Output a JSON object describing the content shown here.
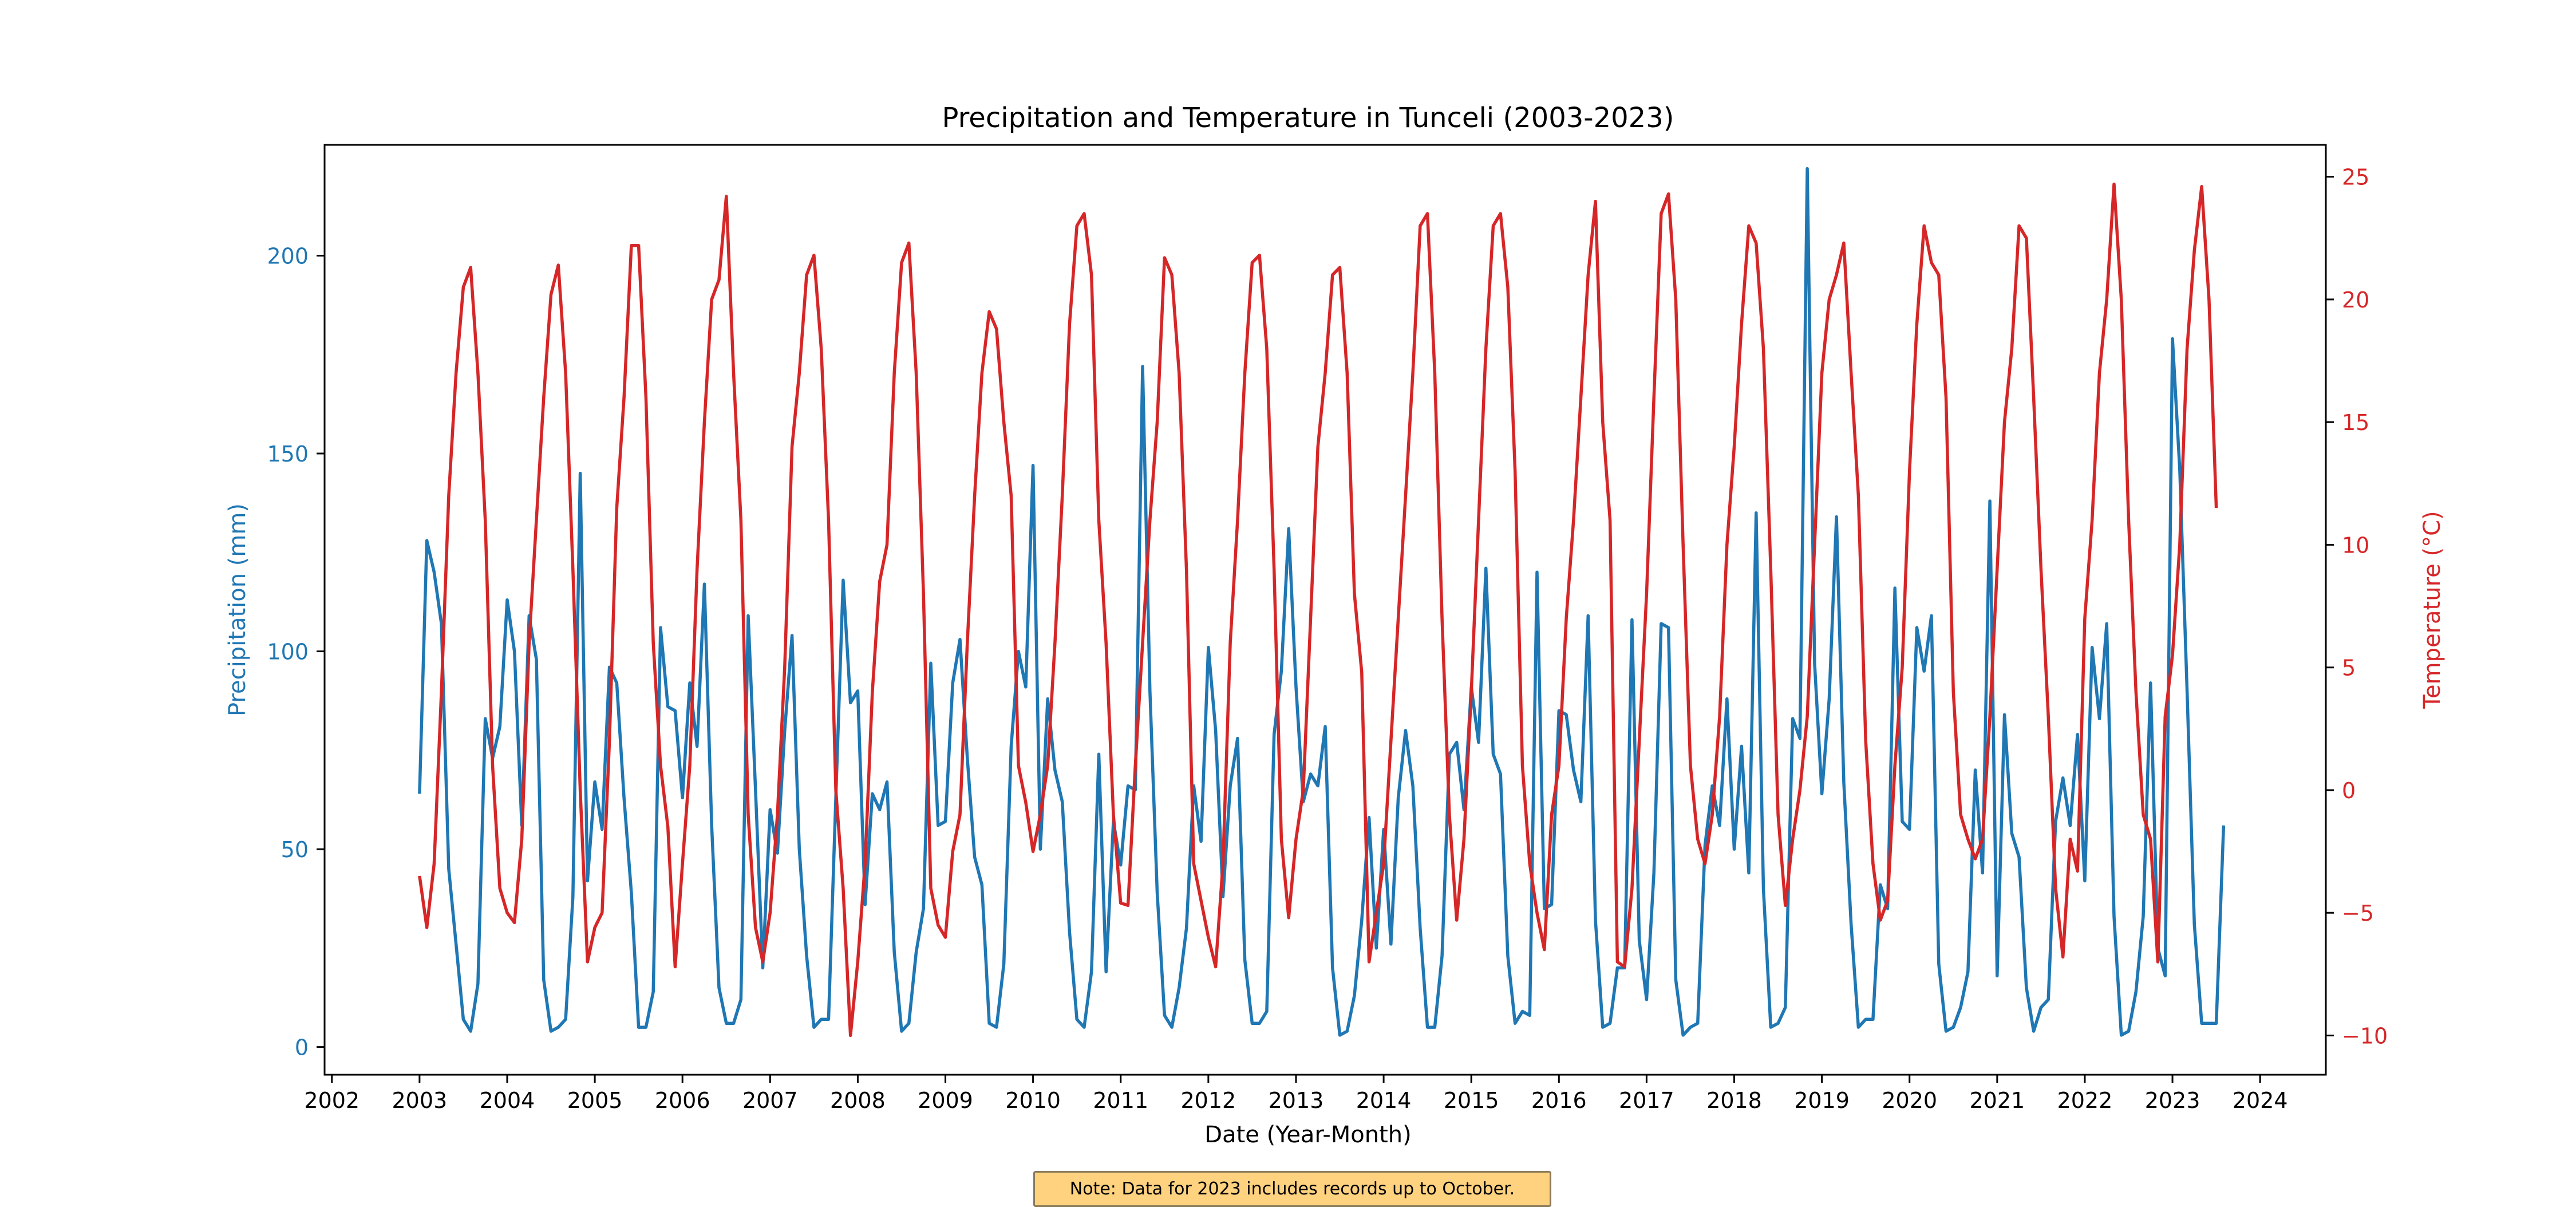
{
  "chart_data": {
    "type": "line",
    "title": "Precipitation and Temperature in Tunceli (2003-2023)",
    "xlabel": "Date (Year-Month)",
    "x_range": [
      "2001-12-01",
      "2024-10-01"
    ],
    "x_ticks": [
      "2002",
      "2003",
      "2004",
      "2005",
      "2006",
      "2007",
      "2008",
      "2009",
      "2010",
      "2011",
      "2012",
      "2013",
      "2014",
      "2015",
      "2016",
      "2017",
      "2018",
      "2019",
      "2020",
      "2021",
      "2022",
      "2023",
      "2024"
    ],
    "grid": false,
    "legend": "none",
    "y_left": {
      "label": "Precipitation (mm)",
      "range": [
        -7,
        228
      ],
      "ticks": [
        0,
        50,
        100,
        150,
        200
      ],
      "color": "#1f77b4"
    },
    "y_right": {
      "label": "Temperature (°C)",
      "range": [
        -11.6,
        26.3
      ],
      "ticks": [
        -10,
        -5,
        0,
        5,
        10,
        15,
        20,
        25
      ],
      "color": "#d62728"
    },
    "series": [
      {
        "axis": "left",
        "color": "#1f77b4",
        "start": "2003-01",
        "values": [
          64,
          128,
          120,
          107,
          45,
          26,
          7,
          4,
          16,
          83,
          73,
          81,
          113,
          100,
          56,
          109,
          98,
          17,
          4,
          5,
          7,
          38,
          145,
          42,
          67,
          55,
          96,
          92,
          63,
          39,
          5,
          5,
          14,
          106,
          86,
          85,
          63,
          92,
          76,
          117,
          56,
          15,
          6,
          6,
          12,
          109,
          65,
          20,
          60,
          49,
          80,
          104,
          50,
          23,
          5,
          7,
          7,
          63,
          118,
          87,
          90,
          36,
          64,
          60,
          67,
          24,
          4,
          6,
          24,
          35,
          97,
          56,
          57,
          92,
          103,
          73,
          48,
          41,
          6,
          5,
          21,
          76,
          100,
          91,
          147,
          50,
          88,
          70,
          62,
          29,
          7,
          5,
          19,
          74,
          19,
          57,
          46,
          66,
          65,
          172,
          90,
          39,
          8,
          5,
          15,
          30,
          66,
          52,
          101,
          80,
          38,
          66,
          78,
          22,
          6,
          6,
          9,
          79,
          95,
          131,
          91,
          62,
          69,
          66,
          81,
          20,
          3,
          4,
          13,
          32,
          58,
          25,
          55,
          26,
          63,
          80,
          66,
          30,
          5,
          5,
          23,
          74,
          77,
          60,
          91,
          77,
          121,
          74,
          69,
          23,
          6,
          9,
          8,
          120,
          35,
          36,
          85,
          84,
          70,
          62,
          109,
          32,
          5,
          6,
          20,
          20,
          108,
          27,
          12,
          44,
          107,
          106,
          17,
          3,
          5,
          6,
          51,
          66,
          56,
          88,
          50,
          76,
          44,
          135,
          40,
          5,
          6,
          10,
          83,
          78,
          222,
          97,
          64,
          88,
          134,
          67,
          31,
          5,
          7,
          7,
          41,
          35,
          116,
          57,
          55,
          106,
          95,
          109,
          21,
          4,
          5,
          10,
          19,
          70,
          44,
          138,
          18,
          84,
          54,
          48,
          15,
          4,
          10,
          12,
          57,
          68,
          56,
          79,
          42,
          101,
          83,
          107,
          33,
          3,
          4,
          14,
          33,
          92,
          25,
          18,
          179,
          146,
          90,
          31,
          6,
          6,
          6,
          56
        ]
      },
      {
        "axis": "right",
        "color": "#d62728",
        "start": "2003-01",
        "values": [
          -3.5,
          -5.6,
          -3,
          4,
          12,
          17,
          20.5,
          21.3,
          17,
          11,
          1,
          -4,
          -5,
          -5.4,
          -2,
          6,
          11,
          16,
          20.2,
          21.4,
          17,
          9,
          0,
          -7,
          -5.6,
          -5,
          2,
          11.5,
          16,
          22.2,
          22.2,
          16,
          6,
          1,
          -1.5,
          -7.2,
          -3,
          1,
          9,
          15,
          20,
          20.8,
          24.2,
          17,
          11,
          -1,
          -5.6,
          -7,
          -5,
          -1,
          5,
          14,
          17,
          21,
          21.8,
          18,
          11,
          0,
          -4,
          -10,
          -7,
          -3,
          4,
          8.5,
          10,
          17,
          21.5,
          22.3,
          17,
          8,
          -4,
          -5.5,
          -6,
          -2.5,
          -1,
          6,
          12,
          17,
          19.5,
          18.8,
          15,
          12,
          1,
          -0.5,
          -2.5,
          -1,
          1,
          6,
          12,
          19,
          23,
          23.5,
          21,
          11,
          6,
          -1,
          -4.6,
          -4.7,
          1,
          6,
          11,
          15,
          21.7,
          21,
          17,
          9,
          -3,
          -4.5,
          -6,
          -7.2,
          -3,
          6,
          11,
          17,
          21.5,
          21.8,
          18,
          9,
          -2,
          -5.2,
          -2,
          0,
          7,
          14,
          17,
          21,
          21.3,
          17,
          8,
          4.8,
          -7,
          -5,
          -3,
          2,
          7,
          12,
          17,
          23,
          23.5,
          17,
          7,
          -1,
          -5.3,
          -2,
          4,
          11,
          18,
          23,
          23.5,
          20.5,
          13,
          1,
          -3,
          -5,
          -6.5,
          -1,
          1,
          7,
          11,
          16,
          21,
          24,
          15,
          11,
          -7,
          -7.2,
          -4,
          2,
          8,
          16,
          23.5,
          24.3,
          20,
          10,
          1,
          -2,
          -3,
          -1,
          3,
          10,
          14,
          19,
          23,
          22.3,
          18,
          9,
          -1,
          -4.7,
          -2,
          0,
          3,
          10,
          17,
          20,
          21,
          22.3,
          17,
          12,
          2,
          -3,
          -5.3,
          -4.5,
          1,
          5,
          13,
          19,
          23,
          21.5,
          21,
          16,
          4,
          -1,
          -2,
          -2.8,
          -2,
          3,
          9,
          15,
          18,
          23,
          22.5,
          16,
          9,
          3,
          -4,
          -6.8,
          -2,
          -3.3,
          7,
          11,
          17,
          20,
          24.7,
          20,
          11,
          4,
          -1,
          -2,
          -7,
          3,
          5.5,
          10,
          18,
          22,
          24.6,
          20,
          11.5
        ]
      }
    ],
    "annotation": "Note: Data for 2023 includes records up to October."
  }
}
